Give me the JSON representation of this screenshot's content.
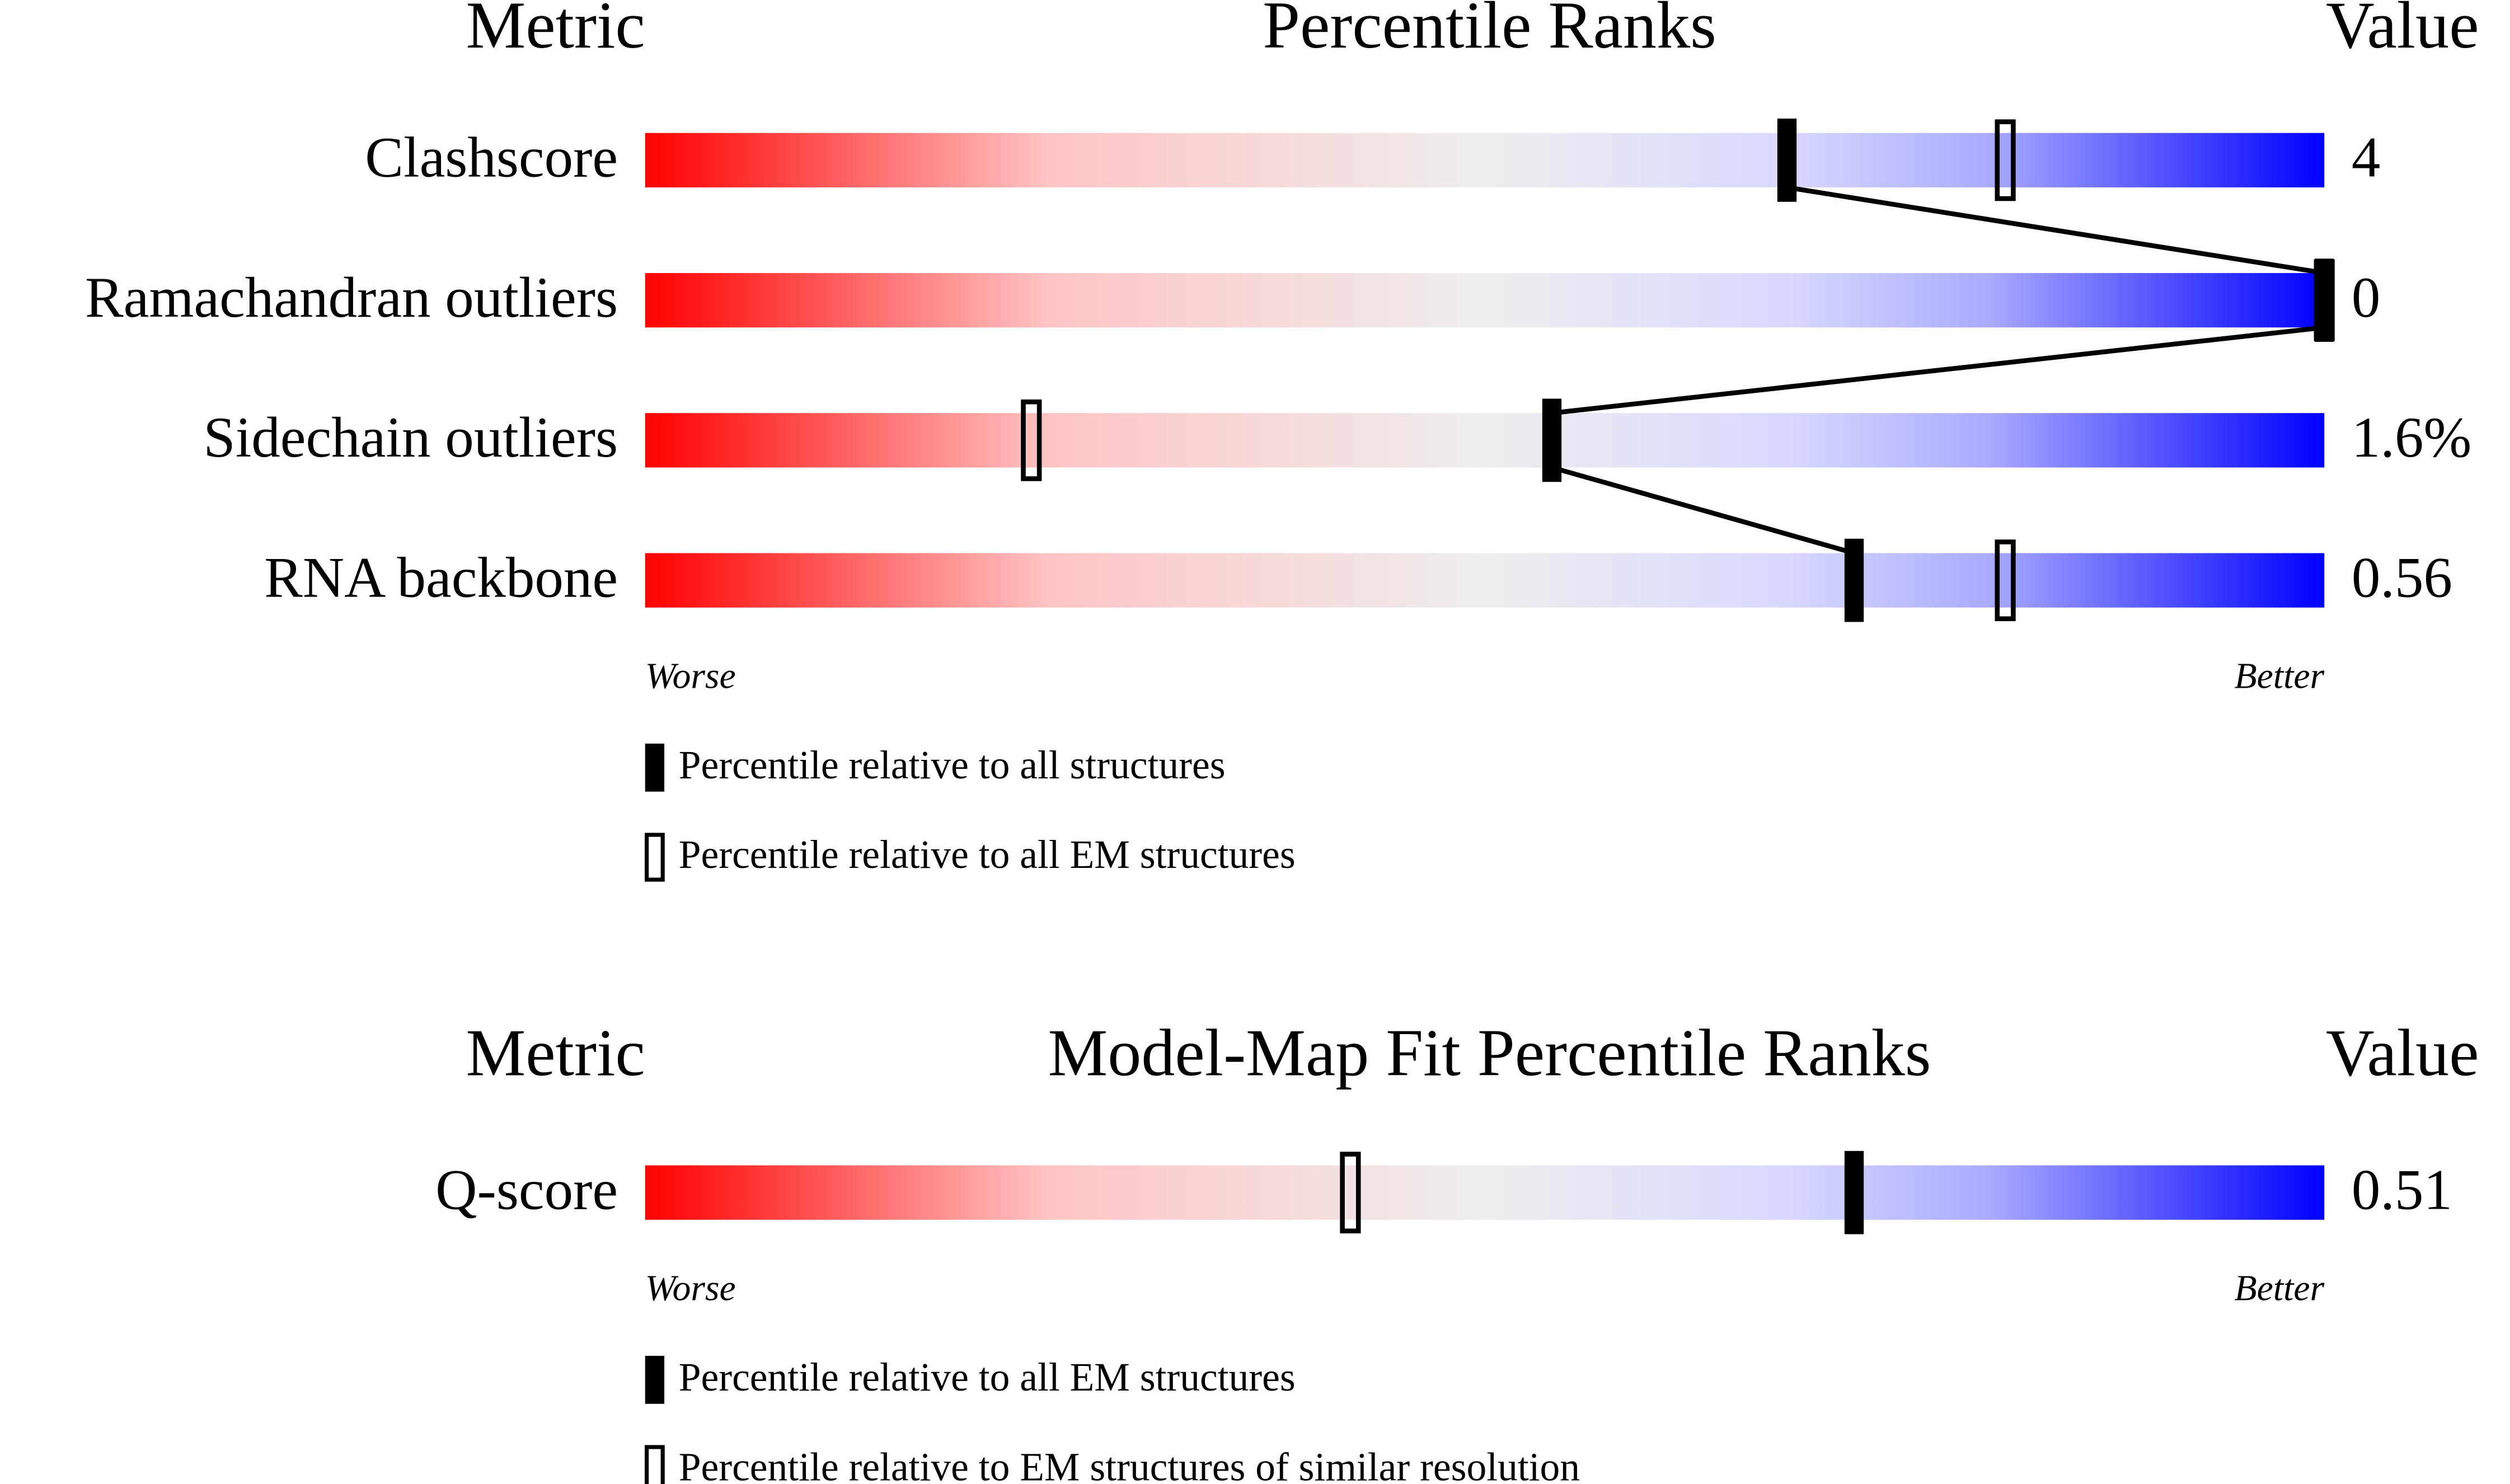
{
  "chart_data": [
    {
      "type": "percentile-slider",
      "metric_header": "Metric",
      "title": "Percentile Ranks",
      "value_header": "Value",
      "categories": [
        "Clashscore",
        "Ramachandran outliers",
        "Sidechain outliers",
        "RNA backbone"
      ],
      "metric_values": [
        "4",
        "0",
        "1.6%",
        "0.56"
      ],
      "xlim": [
        0,
        100
      ],
      "low_label": "Worse",
      "high_label": "Better",
      "connect_filled": true,
      "series": [
        {
          "name": "Percentile relative to all structures",
          "marker": "filled",
          "color": "#000000",
          "values": [
            68,
            100,
            54,
            72
          ]
        },
        {
          "name": "Percentile relative to all EM structures",
          "marker": "open",
          "color": "#000000",
          "values": [
            81,
            100,
            23,
            81
          ]
        }
      ]
    },
    {
      "type": "percentile-slider",
      "metric_header": "Metric",
      "title": "Model-Map Fit Percentile Ranks",
      "value_header": "Value",
      "categories": [
        "Q-score"
      ],
      "metric_values": [
        "0.51"
      ],
      "xlim": [
        0,
        100
      ],
      "low_label": "Worse",
      "high_label": "Better",
      "connect_filled": false,
      "series": [
        {
          "name": "Percentile relative to all EM structures",
          "marker": "filled",
          "color": "#000000",
          "values": [
            72
          ]
        },
        {
          "name": "Percentile relative to EM structures of similar resolution",
          "marker": "open",
          "color": "#000000",
          "values": [
            42
          ]
        }
      ]
    }
  ]
}
